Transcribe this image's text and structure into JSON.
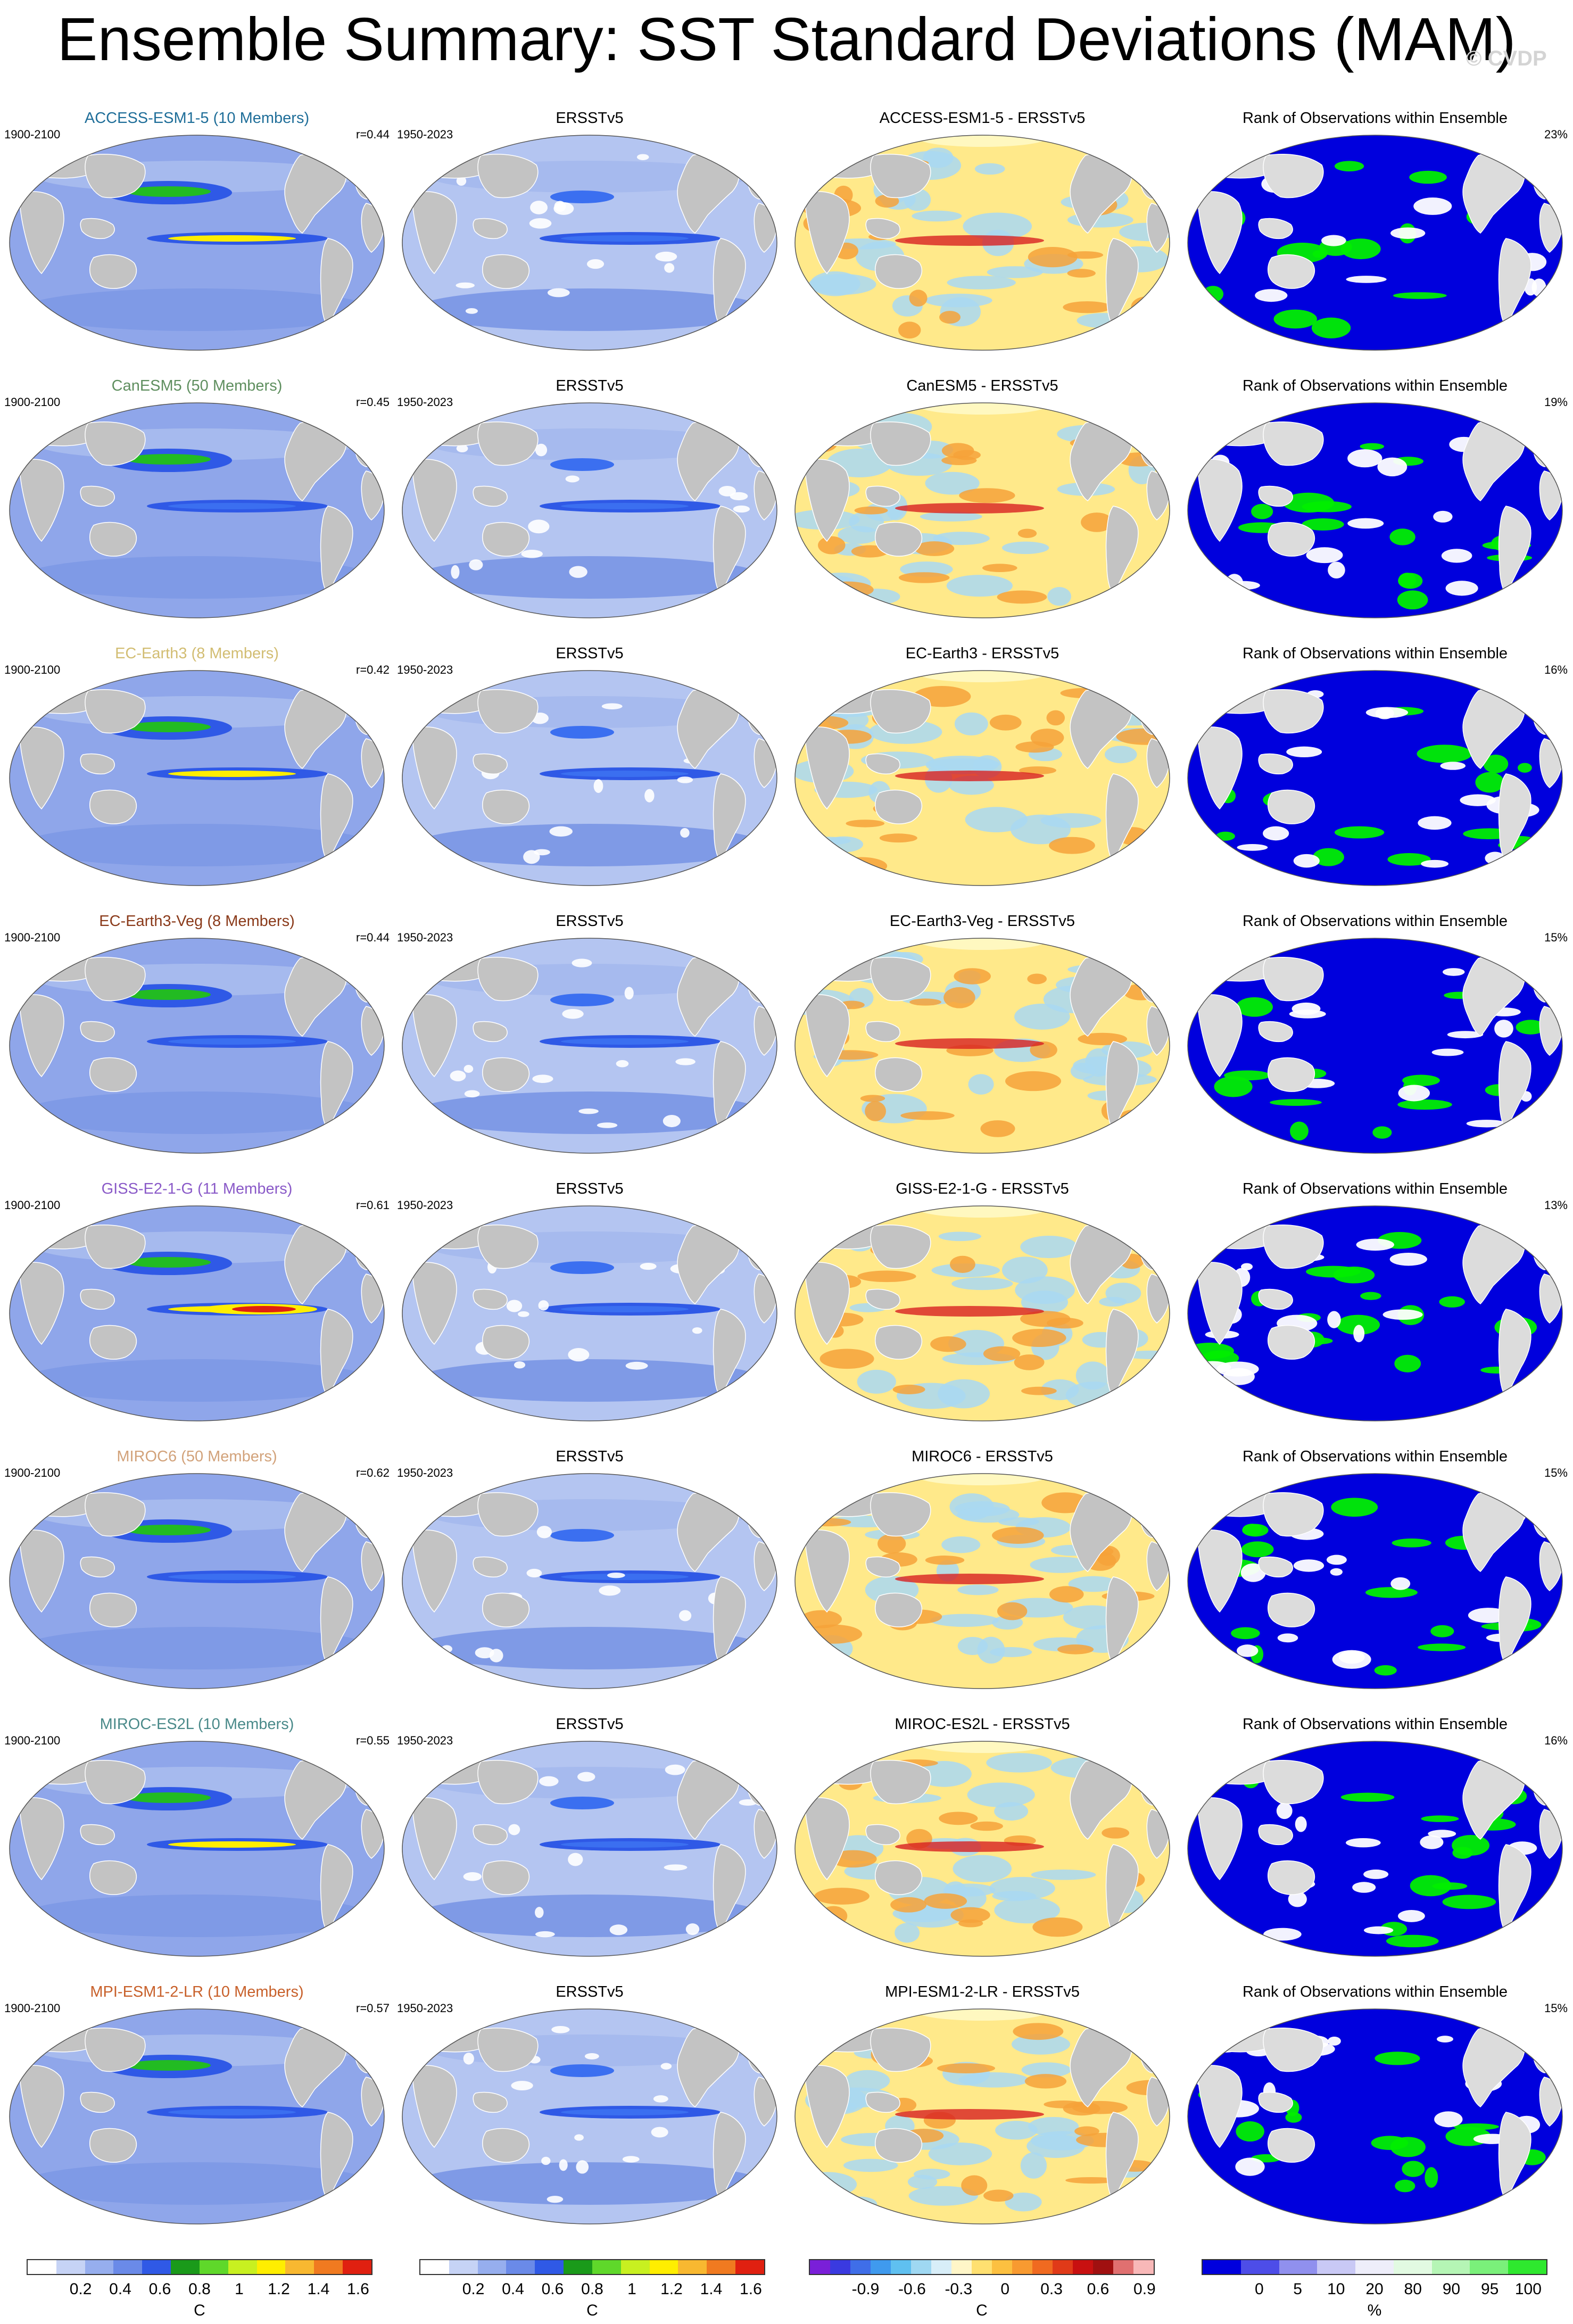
{
  "title": "Ensemble Summary: SST Standard Deviations (MAM)",
  "credit": "© CVDP",
  "colors": {
    "ocean_light": "#b8c9f2",
    "ocean_mid": "#7f9ae6",
    "ocean_dark": "#2f59e6",
    "land": "#c3c3c3",
    "land_rank": "#dcdcdc",
    "rank_blue": "#0000dd",
    "rank_green": "#00ee00",
    "diff_yellow": "#ffe98a",
    "diff_orange": "#f6a23a",
    "diff_red": "#d82020",
    "diff_lightblue": "#a9d8f2",
    "band_green": "#22bb22",
    "band_yellow": "#ffee00",
    "band_red": "#e02010"
  },
  "rows": [
    {
      "model": "ACCESS-ESM1-5 (10 Members)",
      "model_color": "#1f6e99",
      "period": "1900-2100",
      "r": "r=0.44",
      "obs_title": "ERSSTv5",
      "obs_period": "1950-2023",
      "diff_title": "ACCESS-ESM1-5 - ERSSTv5",
      "rank_title": "Rank of Observations within Ensemble",
      "rank_pct": "23%"
    },
    {
      "model": "CanESM5 (50 Members)",
      "model_color": "#5f8f5f",
      "period": "1900-2100",
      "r": "r=0.45",
      "obs_title": "ERSSTv5",
      "obs_period": "1950-2023",
      "diff_title": "CanESM5 - ERSSTv5",
      "rank_title": "Rank of Observations within Ensemble",
      "rank_pct": "19%"
    },
    {
      "model": "EC-Earth3 (8 Members)",
      "model_color": "#d2bd72",
      "period": "1900-2100",
      "r": "r=0.42",
      "obs_title": "ERSSTv5",
      "obs_period": "1950-2023",
      "diff_title": "EC-Earth3 - ERSSTv5",
      "rank_title": "Rank of Observations within Ensemble",
      "rank_pct": "16%"
    },
    {
      "model": "EC-Earth3-Veg (8 Members)",
      "model_color": "#8a3a1a",
      "period": "1900-2100",
      "r": "r=0.44",
      "obs_title": "ERSSTv5",
      "obs_period": "1950-2023",
      "diff_title": "EC-Earth3-Veg - ERSSTv5",
      "rank_title": "Rank of Observations within Ensemble",
      "rank_pct": "15%"
    },
    {
      "model": "GISS-E2-1-G (11 Members)",
      "model_color": "#8a5ac8",
      "period": "1900-2100",
      "r": "r=0.61",
      "obs_title": "ERSSTv5",
      "obs_period": "1950-2023",
      "diff_title": "GISS-E2-1-G - ERSSTv5",
      "rank_title": "Rank of Observations within Ensemble",
      "rank_pct": "13%"
    },
    {
      "model": "MIROC6 (50 Members)",
      "model_color": "#d2a27a",
      "period": "1900-2100",
      "r": "r=0.62",
      "obs_title": "ERSSTv5",
      "obs_period": "1950-2023",
      "diff_title": "MIROC6 - ERSSTv5",
      "rank_title": "Rank of Observations within Ensemble",
      "rank_pct": "15%"
    },
    {
      "model": "MIROC-ES2L (10 Members)",
      "model_color": "#4a8a8a",
      "period": "1900-2100",
      "r": "r=0.55",
      "obs_title": "ERSSTv5",
      "obs_period": "1950-2023",
      "diff_title": "MIROC-ES2L - ERSSTv5",
      "rank_title": "Rank of Observations within Ensemble",
      "rank_pct": "16%"
    },
    {
      "model": "MPI-ESM1-2-LR (10 Members)",
      "model_color": "#c8602a",
      "period": "1900-2100",
      "r": "r=0.57",
      "obs_title": "ERSSTv5",
      "obs_period": "1950-2023",
      "diff_title": "MPI-ESM1-2-LR - ERSSTv5",
      "rank_title": "Rank of Observations within Ensemble",
      "rank_pct": "15%"
    }
  ],
  "colorbars": [
    {
      "labels": [
        "0.2",
        "0.4",
        "0.6",
        "0.8",
        "1",
        "1.2",
        "1.4",
        "1.6"
      ],
      "unit": "C",
      "colors": [
        "#ffffff",
        "#c6d3f5",
        "#96aeee",
        "#6a8ae8",
        "#2f59e6",
        "#1a9a1a",
        "#5fd82a",
        "#c8f020",
        "#ffee00",
        "#f8b830",
        "#f07a20",
        "#e02010"
      ]
    },
    {
      "labels": [
        "0.2",
        "0.4",
        "0.6",
        "0.8",
        "1",
        "1.2",
        "1.4",
        "1.6"
      ],
      "unit": "C",
      "colors": [
        "#ffffff",
        "#c6d3f5",
        "#96aeee",
        "#6a8ae8",
        "#2f59e6",
        "#1a9a1a",
        "#5fd82a",
        "#c8f020",
        "#ffee00",
        "#f8b830",
        "#f07a20",
        "#e02010"
      ]
    },
    {
      "labels": [
        "-0.9",
        "-0.6",
        "-0.3",
        "0",
        "0.3",
        "0.6",
        "0.9"
      ],
      "unit": "C",
      "colors": [
        "#7a1fd8",
        "#3a3ae0",
        "#3f6ee8",
        "#3f9aee",
        "#5fc0f0",
        "#9fd8f2",
        "#d8eef8",
        "#fff6c8",
        "#ffe070",
        "#fcc040",
        "#f89a30",
        "#f06a20",
        "#e03a18",
        "#c81010",
        "#a01010",
        "#e07070",
        "#f8b8b8"
      ]
    },
    {
      "labels": [
        "0",
        "5",
        "10",
        "20",
        "80",
        "90",
        "95",
        "100"
      ],
      "unit": "%",
      "colors": [
        "#0000dd",
        "#4d4de8",
        "#9090ee",
        "#c9c9f5",
        "#eeeefa",
        "#e2fae2",
        "#b5f5b5",
        "#7af07a",
        "#2ee82e"
      ]
    }
  ]
}
